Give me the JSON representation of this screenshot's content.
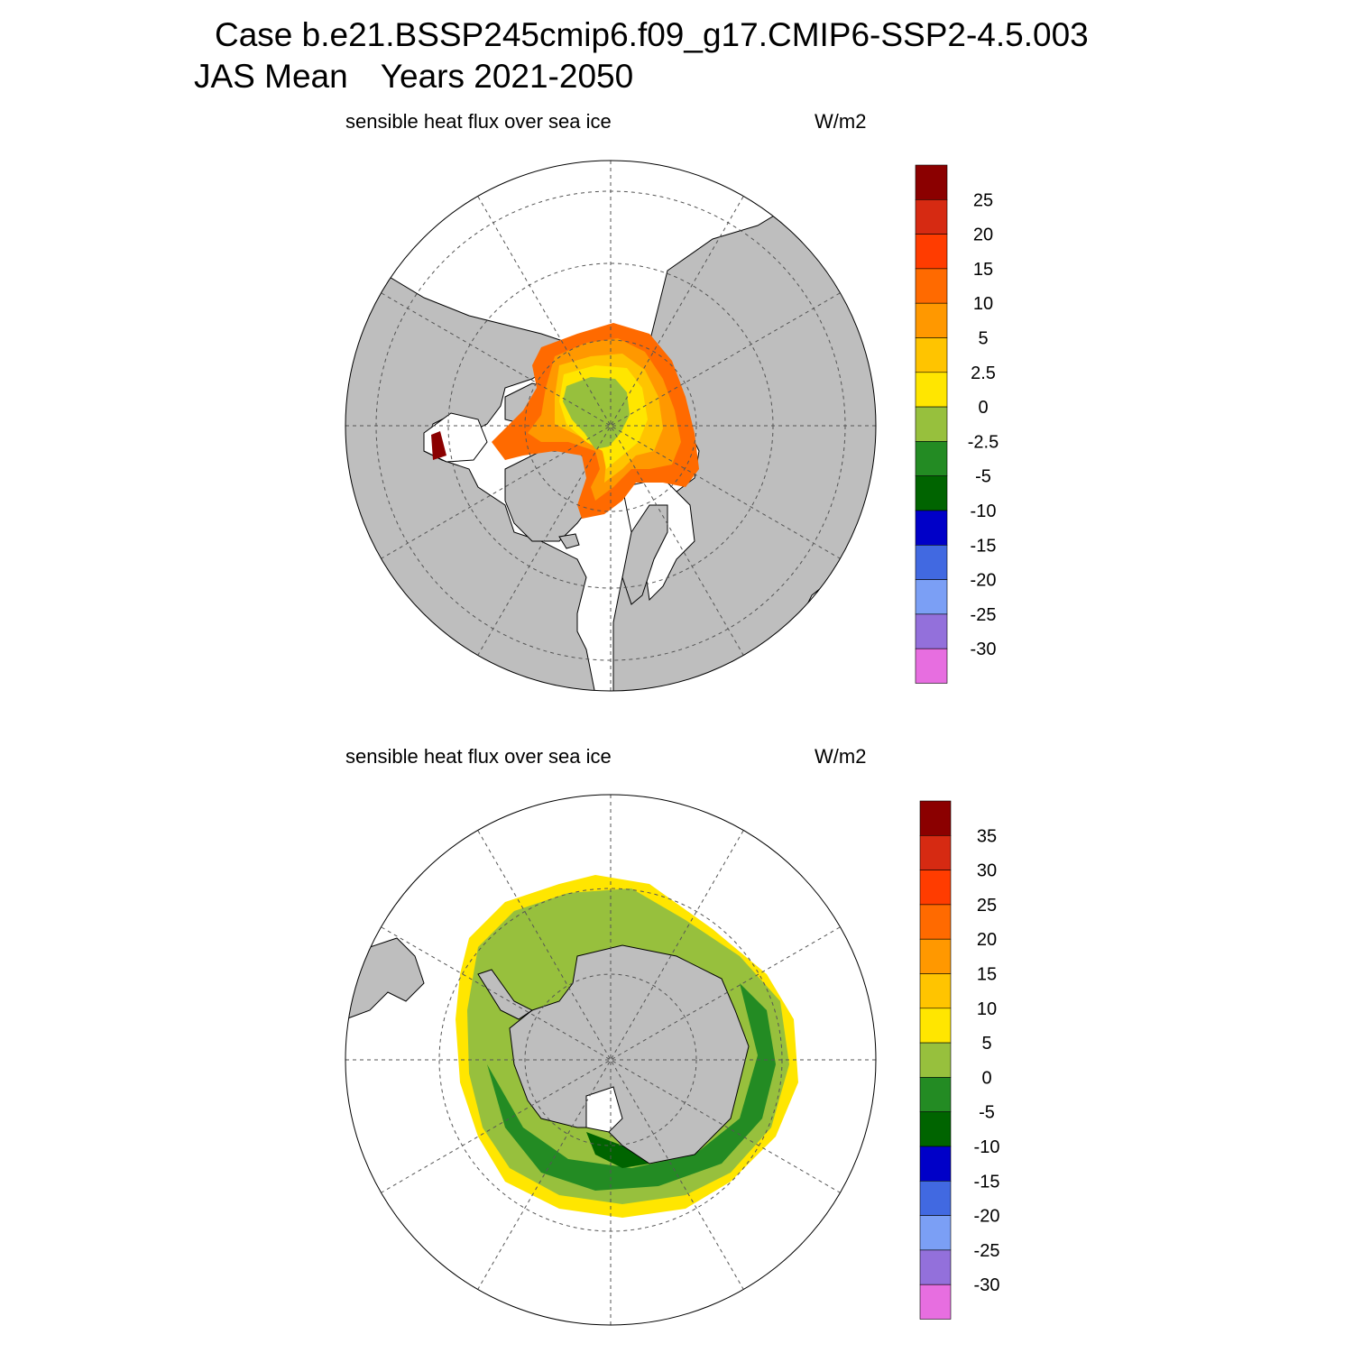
{
  "header": {
    "case_line": "Case b.e21.BSSP245cmip6.f09_g17.CMIP6-SSP2-4.5.003",
    "season": "JAS Mean",
    "years": "Years 2021-2050"
  },
  "panels": [
    {
      "id": "north",
      "variable": "sensible heat flux over sea ice",
      "units": "W/m2",
      "colorbar": {
        "labels": [
          "25",
          "20",
          "15",
          "10",
          "5",
          "2.5",
          "0",
          "-2.5",
          "-5",
          "-10",
          "-15",
          "-20",
          "-25",
          "-30"
        ],
        "colors": [
          "#8b0000",
          "#d62a12",
          "#ff3c00",
          "#ff6a00",
          "#ff9800",
          "#ffc400",
          "#ffe600",
          "#97c03d",
          "#238b23",
          "#006400",
          "#0000c8",
          "#4169e1",
          "#7b9ff5",
          "#9370db",
          "#e76ee0"
        ]
      }
    },
    {
      "id": "south",
      "variable": "sensible heat flux over sea ice",
      "units": "W/m2",
      "colorbar": {
        "labels": [
          "35",
          "30",
          "25",
          "20",
          "15",
          "10",
          "5",
          "0",
          "-5",
          "-10",
          "-15",
          "-20",
          "-25",
          "-30"
        ],
        "colors": [
          "#8b0000",
          "#d62a12",
          "#ff3c00",
          "#ff6a00",
          "#ff9800",
          "#ffc400",
          "#ffe600",
          "#97c03d",
          "#238b23",
          "#006400",
          "#0000c8",
          "#4169e1",
          "#7b9ff5",
          "#9370db",
          "#e76ee0"
        ]
      }
    }
  ],
  "map_colors": {
    "land": "#bebebe",
    "ocean": "#ffffff",
    "coast": "#000000",
    "grid": "#555555"
  }
}
